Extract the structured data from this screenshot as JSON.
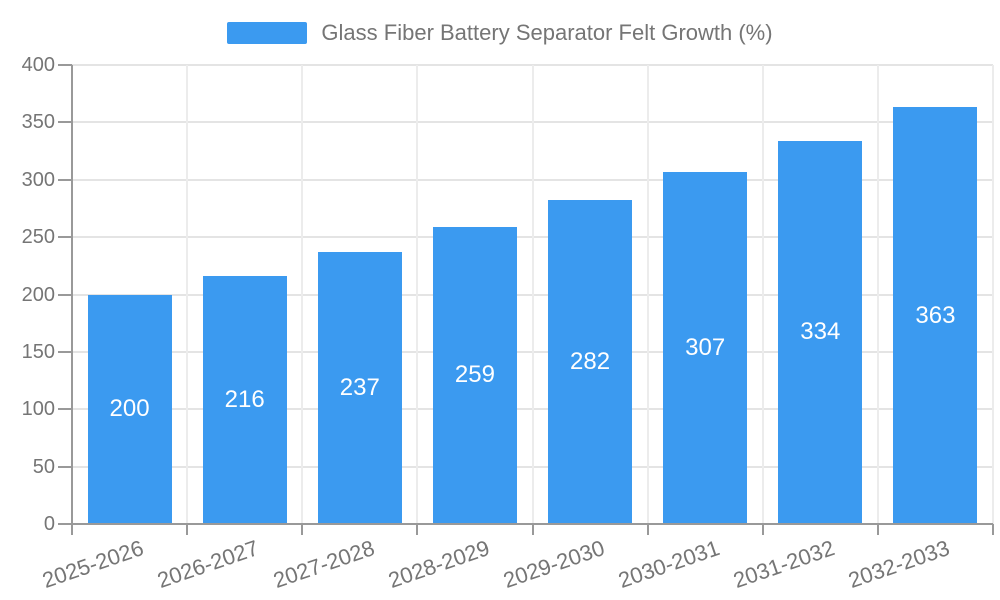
{
  "legend": {
    "label": "Glass Fiber Battery Separator Felt Growth (%)"
  },
  "chart_data": {
    "type": "bar",
    "title": "Glass Fiber Battery Separator Felt Growth (%)",
    "categories": [
      "2025-2026",
      "2026-2027",
      "2027-2028",
      "2028-2029",
      "2029-2030",
      "2030-2031",
      "2031-2032",
      "2032-2033"
    ],
    "values": [
      200,
      216,
      237,
      259,
      282,
      307,
      334,
      363
    ],
    "xlabel": "",
    "ylabel": "",
    "ylim": [
      0,
      400
    ],
    "yticks": [
      0,
      50,
      100,
      150,
      200,
      250,
      300,
      350,
      400
    ],
    "grid": true,
    "legend_position": "top",
    "x_label_rotation": -19,
    "colors": {
      "bar": "#3b9af0",
      "bar_label": "#ffffff",
      "axis": "#999999",
      "grid_h": "#e4e4e4",
      "grid_v": "#ececec",
      "text": "#757575"
    }
  }
}
